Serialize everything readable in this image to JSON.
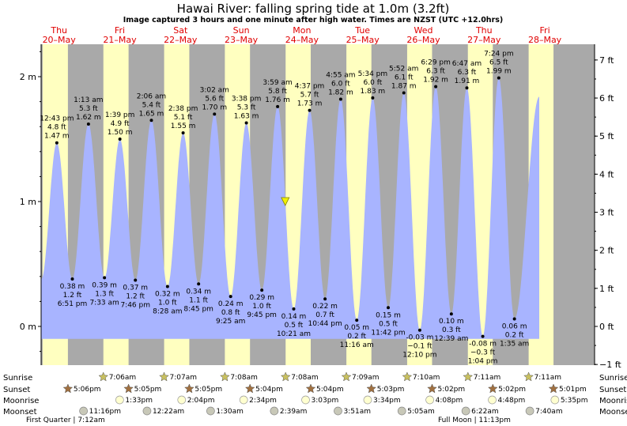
{
  "title": "Hawai River: falling  spring tide at 1.0m (3.2ft)",
  "subtitle": "Image captured 3 hours and one minute after high water. Times are NZST (UTC +12.0hrs)",
  "colors": {
    "night": "#a9a9a9",
    "day": "#ffffc0",
    "water": "#a8b4ff",
    "sun": "#c8c060",
    "sunset": "#a07040",
    "moonrise": "#ffffd0",
    "moonset": "#c8c8b8",
    "marker": "#f0f000",
    "day_label": "#e00000"
  },
  "days": [
    {
      "name": "Thu",
      "date": "20–May"
    },
    {
      "name": "Fri",
      "date": "21–May"
    },
    {
      "name": "Sat",
      "date": "22–May"
    },
    {
      "name": "Sun",
      "date": "23–May"
    },
    {
      "name": "Mon",
      "date": "24–May"
    },
    {
      "name": "Tue",
      "date": "25–May"
    },
    {
      "name": "Wed",
      "date": "26–May"
    },
    {
      "name": "Thu",
      "date": "27–May"
    },
    {
      "name": "Fri",
      "date": "28–May"
    }
  ],
  "chart_data": {
    "type": "area",
    "title": "Hawai River: falling  spring tide at 1.0m (3.2ft)",
    "y_axis_left": {
      "unit": "m",
      "ticks": [
        "0 m",
        "1 m",
        "2 m"
      ],
      "range": [
        -0.25,
        2.25
      ]
    },
    "y_axis_right": {
      "unit": "ft",
      "ticks": [
        "−1 ft",
        "0 ft",
        "1 ft",
        "2 ft",
        "3 ft",
        "4 ft",
        "5 ft",
        "6 ft",
        "7 ft"
      ]
    },
    "current_level_m": 1.0,
    "tides": [
      {
        "type": "high",
        "time": "12:43 pm",
        "ft": "4.8 ft",
        "m": 1.47
      },
      {
        "type": "low",
        "time": "6:51 pm",
        "ft": "1.2 ft",
        "m": 0.38
      },
      {
        "type": "high",
        "time": "1:13 am",
        "ft": "5.3 ft",
        "m": 1.62
      },
      {
        "type": "low",
        "time": "7:33 am",
        "ft": "1.3 ft",
        "m": 0.39
      },
      {
        "type": "high",
        "time": "1:39 pm",
        "ft": "4.9 ft",
        "m": 1.5
      },
      {
        "type": "low",
        "time": "7:46 pm",
        "ft": "1.2 ft",
        "m": 0.37
      },
      {
        "type": "high",
        "time": "2:06 am",
        "ft": "5.4 ft",
        "m": 1.65
      },
      {
        "type": "low",
        "time": "8:28 am",
        "ft": "1.0 ft",
        "m": 0.32
      },
      {
        "type": "high",
        "time": "2:38 pm",
        "ft": "5.1 ft",
        "m": 1.55
      },
      {
        "type": "low",
        "time": "8:45 pm",
        "ft": "1.1 ft",
        "m": 0.34
      },
      {
        "type": "high",
        "time": "3:02 am",
        "ft": "5.6 ft",
        "m": 1.7
      },
      {
        "type": "low",
        "time": "9:25 am",
        "ft": "0.8 ft",
        "m": 0.24
      },
      {
        "type": "high",
        "time": "3:38 pm",
        "ft": "5.3 ft",
        "m": 1.63
      },
      {
        "type": "low",
        "time": "9:45 pm",
        "ft": "1.0 ft",
        "m": 0.29
      },
      {
        "type": "high",
        "time": "3:59 am",
        "ft": "5.8 ft",
        "m": 1.76
      },
      {
        "type": "low",
        "time": "10:21 am",
        "ft": "0.5 ft",
        "m": 0.14
      },
      {
        "type": "high",
        "time": "4:37 pm",
        "ft": "5.7 ft",
        "m": 1.73
      },
      {
        "type": "low",
        "time": "10:44 pm",
        "ft": "0.7 ft",
        "m": 0.22
      },
      {
        "type": "high",
        "time": "4:55 am",
        "ft": "6.0 ft",
        "m": 1.82
      },
      {
        "type": "low",
        "time": "11:16 am",
        "ft": "0.2 ft",
        "m": 0.05
      },
      {
        "type": "high",
        "time": "5:34 pm",
        "ft": "6.0 ft",
        "m": 1.83
      },
      {
        "type": "low",
        "time": "11:42 pm",
        "ft": "0.5 ft",
        "m": 0.15
      },
      {
        "type": "high",
        "time": "5:52 am",
        "ft": "6.1 ft",
        "m": 1.87
      },
      {
        "type": "low",
        "time": "12:10 pm",
        "ft": "−0.1 ft",
        "m": -0.03
      },
      {
        "type": "high",
        "time": "6:29 pm",
        "ft": "6.3 ft",
        "m": 1.92
      },
      {
        "type": "low",
        "time": "12:39 am",
        "ft": "0.3 ft",
        "m": 0.1
      },
      {
        "type": "high",
        "time": "6:47 am",
        "ft": "6.3 ft",
        "m": 1.91
      },
      {
        "type": "low",
        "time": "1:04 pm",
        "ft": "−0.3 ft",
        "m": -0.08
      },
      {
        "type": "high",
        "time": "7:24 pm",
        "ft": "6.5 ft",
        "m": 1.99
      },
      {
        "type": "low",
        "time": "1:35 am",
        "ft": "0.2 ft",
        "m": 0.06
      }
    ]
  },
  "astro": {
    "row_labels": [
      "Sunrise",
      "Sunset",
      "Moonrise",
      "Moonset"
    ],
    "sunrise": [
      "7:06am",
      "7:07am",
      "7:08am",
      "7:08am",
      "7:09am",
      "7:10am",
      "7:11am",
      "7:11am"
    ],
    "sunset": [
      "5:06pm",
      "5:05pm",
      "5:05pm",
      "5:04pm",
      "5:04pm",
      "5:03pm",
      "5:02pm",
      "5:02pm",
      "5:01pm"
    ],
    "moonrise": [
      "1:33pm",
      "2:04pm",
      "2:34pm",
      "3:03pm",
      "3:34pm",
      "4:08pm",
      "4:48pm",
      "5:35pm"
    ],
    "moonset": [
      "11:16pm",
      "12:22am",
      "1:30am",
      "2:39am",
      "3:51am",
      "5:05am",
      "6:22am",
      "7:40am"
    ],
    "phases": [
      "First Quarter | 7:12am",
      "Full Moon | 11:13pm"
    ]
  }
}
